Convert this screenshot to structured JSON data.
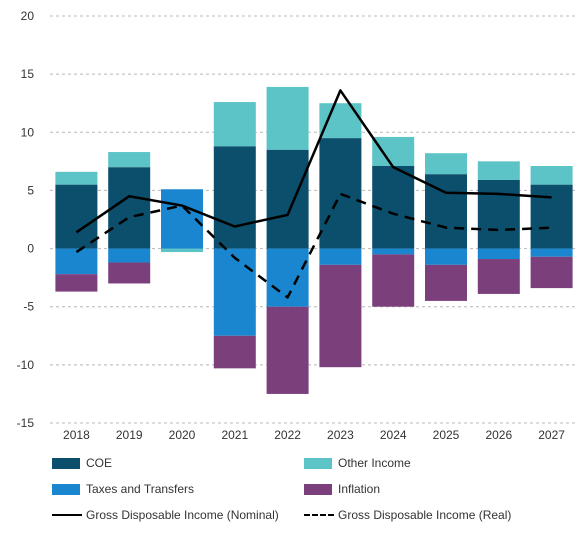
{
  "chart_data": {
    "type": "bar",
    "stacked": true,
    "categories": [
      "2018",
      "2019",
      "2020",
      "2021",
      "2022",
      "2023",
      "2024",
      "2025",
      "2026",
      "2027"
    ],
    "series": [
      {
        "name": "COE",
        "kind": "bar",
        "color": "#0b4f6c",
        "values": [
          5.5,
          7.0,
          0.0,
          8.8,
          8.5,
          9.5,
          7.1,
          6.4,
          5.9,
          5.5
        ]
      },
      {
        "name": "Other Income",
        "kind": "bar",
        "color": "#5cc3c6",
        "values": [
          1.1,
          1.3,
          -0.3,
          3.8,
          5.4,
          3.0,
          2.5,
          1.8,
          1.6,
          1.6
        ]
      },
      {
        "name": "Taxes and Transfers",
        "kind": "bar",
        "color": "#1a86d0",
        "values": [
          -2.2,
          -1.2,
          5.1,
          -7.5,
          -5.0,
          -1.4,
          -0.5,
          -1.4,
          -0.9,
          -0.7
        ]
      },
      {
        "name": "Inflation",
        "kind": "bar",
        "color": "#7b3f7c",
        "values": [
          -1.5,
          -1.8,
          0.0,
          -2.8,
          -7.5,
          -8.8,
          -4.5,
          -3.1,
          -3.0,
          -2.7
        ]
      },
      {
        "name": "Gross Disposable Income (Nominal)",
        "kind": "line",
        "dash": "solid",
        "color": "#000000",
        "values": [
          1.4,
          4.5,
          3.7,
          1.9,
          2.9,
          13.6,
          7.0,
          4.8,
          4.7,
          4.4
        ]
      },
      {
        "name": "Gross Disposable Income (Real)",
        "kind": "line",
        "dash": "dashed",
        "color": "#000000",
        "values": [
          -0.3,
          2.7,
          3.7,
          -0.8,
          -4.2,
          4.7,
          3.0,
          1.8,
          1.6,
          1.8
        ]
      }
    ],
    "title": "",
    "xlabel": "",
    "ylabel": "",
    "ylim": [
      -15,
      20
    ],
    "yticks": [
      20,
      15,
      10,
      5,
      0,
      -5,
      -10,
      -15
    ],
    "grid": true,
    "legend": "bottom"
  },
  "legend": {
    "coe": "COE",
    "other_income": "Other Income",
    "taxes": "Taxes and Transfers",
    "inflation": "Inflation",
    "gdi_nominal": "Gross Disposable Income (Nominal)",
    "gdi_real": "Gross Disposable Income (Real)"
  },
  "colors": {
    "coe": "#0b4f6c",
    "other_income": "#5cc3c6",
    "taxes": "#1a86d0",
    "inflation": "#7b3f7c",
    "line": "#000000"
  }
}
